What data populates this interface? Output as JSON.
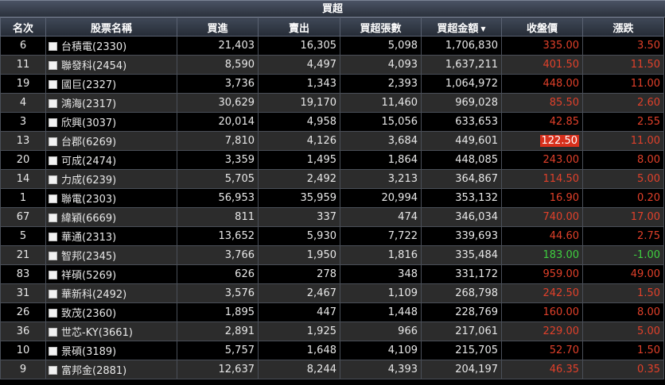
{
  "title": "買超",
  "columns": [
    "名次",
    "股票名稱",
    "買進",
    "賣出",
    "買超張數",
    "買超金額",
    "收盤價",
    "漲跌"
  ],
  "sort_indicator": "▼",
  "colors": {
    "up": "#e0402a",
    "down": "#3fcf3f",
    "highlight": "#d8301c"
  },
  "rows": [
    {
      "rank": "6",
      "name": "台積電(2330)",
      "buy": "21,403",
      "sell": "16,305",
      "net_lots": "5,098",
      "net_amount": "1,706,830",
      "close": "335.00",
      "change": "3.50",
      "dir": "up"
    },
    {
      "rank": "11",
      "name": "聯發科(2454)",
      "buy": "8,590",
      "sell": "4,497",
      "net_lots": "4,093",
      "net_amount": "1,637,211",
      "close": "401.50",
      "change": "11.50",
      "dir": "up"
    },
    {
      "rank": "19",
      "name": "國巨(2327)",
      "buy": "3,736",
      "sell": "1,343",
      "net_lots": "2,393",
      "net_amount": "1,064,972",
      "close": "448.00",
      "change": "11.00",
      "dir": "up"
    },
    {
      "rank": "4",
      "name": "鴻海(2317)",
      "buy": "30,629",
      "sell": "19,170",
      "net_lots": "11,460",
      "net_amount": "969,028",
      "close": "85.50",
      "change": "2.60",
      "dir": "up"
    },
    {
      "rank": "3",
      "name": "欣興(3037)",
      "buy": "20,014",
      "sell": "4,958",
      "net_lots": "15,056",
      "net_amount": "633,653",
      "close": "42.85",
      "change": "2.55",
      "dir": "up"
    },
    {
      "rank": "13",
      "name": "台郡(6269)",
      "buy": "7,810",
      "sell": "4,126",
      "net_lots": "3,684",
      "net_amount": "449,601",
      "close": "122.50",
      "change": "11.00",
      "dir": "up",
      "limit": true
    },
    {
      "rank": "20",
      "name": "可成(2474)",
      "buy": "3,359",
      "sell": "1,495",
      "net_lots": "1,864",
      "net_amount": "448,085",
      "close": "243.00",
      "change": "8.00",
      "dir": "up"
    },
    {
      "rank": "14",
      "name": "力成(6239)",
      "buy": "5,705",
      "sell": "2,492",
      "net_lots": "3,213",
      "net_amount": "364,867",
      "close": "114.50",
      "change": "5.00",
      "dir": "up"
    },
    {
      "rank": "1",
      "name": "聯電(2303)",
      "buy": "56,953",
      "sell": "35,959",
      "net_lots": "20,994",
      "net_amount": "353,132",
      "close": "16.90",
      "change": "0.20",
      "dir": "up"
    },
    {
      "rank": "67",
      "name": "緯穎(6669)",
      "buy": "811",
      "sell": "337",
      "net_lots": "474",
      "net_amount": "346,034",
      "close": "740.00",
      "change": "17.00",
      "dir": "up"
    },
    {
      "rank": "5",
      "name": "華通(2313)",
      "buy": "13,652",
      "sell": "5,930",
      "net_lots": "7,722",
      "net_amount": "339,693",
      "close": "44.60",
      "change": "2.75",
      "dir": "up"
    },
    {
      "rank": "21",
      "name": "智邦(2345)",
      "buy": "3,766",
      "sell": "1,950",
      "net_lots": "1,816",
      "net_amount": "335,484",
      "close": "183.00",
      "change": "-1.00",
      "dir": "down"
    },
    {
      "rank": "83",
      "name": "祥碩(5269)",
      "buy": "626",
      "sell": "278",
      "net_lots": "348",
      "net_amount": "331,172",
      "close": "959.00",
      "change": "49.00",
      "dir": "up"
    },
    {
      "rank": "31",
      "name": "華新科(2492)",
      "buy": "3,576",
      "sell": "2,467",
      "net_lots": "1,109",
      "net_amount": "268,798",
      "close": "242.50",
      "change": "1.50",
      "dir": "up"
    },
    {
      "rank": "26",
      "name": "致茂(2360)",
      "buy": "1,895",
      "sell": "447",
      "net_lots": "1,448",
      "net_amount": "228,769",
      "close": "160.00",
      "change": "8.00",
      "dir": "up"
    },
    {
      "rank": "36",
      "name": "世芯-KY(3661)",
      "buy": "2,891",
      "sell": "1,925",
      "net_lots": "966",
      "net_amount": "217,061",
      "close": "229.00",
      "change": "5.00",
      "dir": "up"
    },
    {
      "rank": "10",
      "name": "景碩(3189)",
      "buy": "5,757",
      "sell": "1,648",
      "net_lots": "4,109",
      "net_amount": "215,705",
      "close": "52.70",
      "change": "1.50",
      "dir": "up"
    },
    {
      "rank": "9",
      "name": "富邦金(2881)",
      "buy": "12,637",
      "sell": "8,244",
      "net_lots": "4,393",
      "net_amount": "204,197",
      "close": "46.35",
      "change": "0.35",
      "dir": "up"
    }
  ]
}
